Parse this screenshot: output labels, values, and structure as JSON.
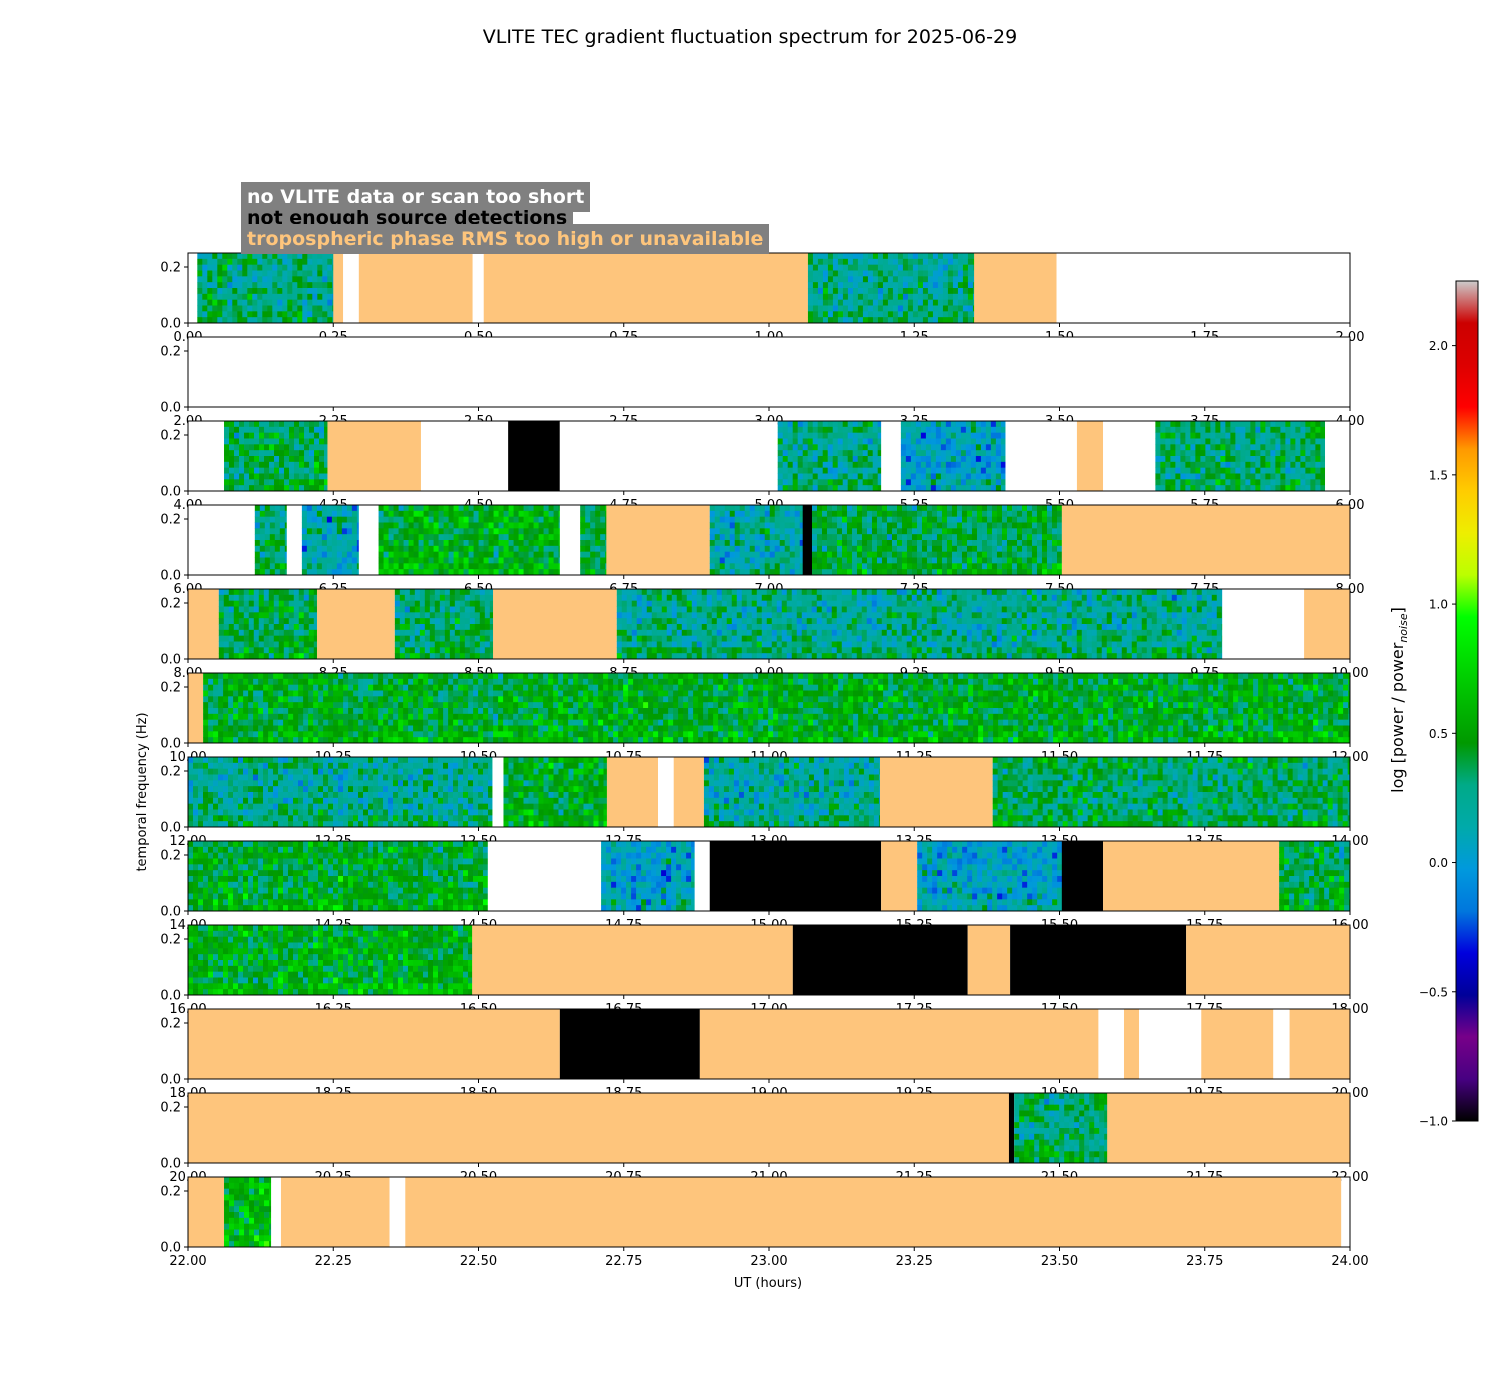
{
  "chart_data": {
    "type": "heatmap",
    "title": "VLITE TEC gradient fluctuation spectrum for 2025-06-29",
    "xlabel": "UT (hours)",
    "ylabel": "temporal frequency (Hz)",
    "colorbar": {
      "label_main": "log [power / power",
      "label_sub": "noise",
      "label_close": "]",
      "range": [
        -1.0,
        2.25
      ],
      "ticks": [
        "−1.0",
        "−0.5",
        "0.0",
        "0.5",
        "1.0",
        "1.5",
        "2.0"
      ],
      "tick_values": [
        -1.0,
        -0.5,
        0.0,
        0.5,
        1.0,
        1.5,
        2.0
      ],
      "colormap": "nipy_spectral"
    },
    "legend": [
      {
        "label": "no VLITE data or scan too short",
        "color": "#ffffff"
      },
      {
        "label": "not enough source detections",
        "color": "#000000"
      },
      {
        "label": "tropospheric phase RMS too high or unavailable",
        "color": "#fec57c"
      }
    ],
    "category_colors": {
      "data": "spectrum",
      "nodata": "#ffffff",
      "black": "#000000",
      "tropo": "#fec57c"
    },
    "y_ticks": [
      "0.0",
      "0.2"
    ],
    "y_tick_values": [
      0.0,
      0.2
    ],
    "ylim": [
      0.0,
      0.25
    ],
    "panels": [
      {
        "start": 0,
        "xticks": [
          "0.00",
          "0.25",
          "0.50",
          "0.75",
          "1.00",
          "1.25",
          "1.50",
          "1.75",
          "2.00"
        ],
        "segments": [
          [
            0.0,
            0.016,
            "nodata"
          ],
          [
            0.016,
            0.25,
            "data"
          ],
          [
            0.25,
            0.267,
            "tropo"
          ],
          [
            0.267,
            0.294,
            "nodata"
          ],
          [
            0.294,
            0.49,
            "tropo"
          ],
          [
            0.49,
            0.509,
            "nodata"
          ],
          [
            0.509,
            1.067,
            "tropo"
          ],
          [
            1.067,
            1.353,
            "data"
          ],
          [
            1.353,
            1.495,
            "tropo"
          ],
          [
            1.495,
            2.0,
            "nodata"
          ]
        ]
      },
      {
        "start": 2,
        "xticks": [
          "2.00",
          "2.25",
          "2.50",
          "2.75",
          "3.00",
          "3.25",
          "3.50",
          "3.75",
          "4.00"
        ],
        "segments": [
          [
            2.0,
            4.0,
            "nodata"
          ]
        ]
      },
      {
        "start": 4,
        "xticks": [
          "4.00",
          "4.25",
          "4.50",
          "4.75",
          "5.00",
          "5.25",
          "5.50",
          "5.75",
          "6.00"
        ],
        "segments": [
          [
            4.0,
            4.062,
            "nodata"
          ],
          [
            4.062,
            4.24,
            "data"
          ],
          [
            4.24,
            4.401,
            "tropo"
          ],
          [
            4.401,
            4.551,
            "nodata"
          ],
          [
            4.551,
            4.64,
            "black"
          ],
          [
            4.64,
            5.015,
            "nodata"
          ],
          [
            5.015,
            5.193,
            "data"
          ],
          [
            5.193,
            5.227,
            "nodata"
          ],
          [
            5.227,
            5.407,
            "data"
          ],
          [
            5.407,
            5.53,
            "nodata"
          ],
          [
            5.53,
            5.575,
            "tropo"
          ],
          [
            5.575,
            5.665,
            "nodata"
          ],
          [
            5.665,
            5.957,
            "data"
          ],
          [
            5.957,
            6.0,
            "nodata"
          ]
        ]
      },
      {
        "start": 6,
        "xticks": [
          "6.00",
          "6.25",
          "6.50",
          "6.75",
          "7.00",
          "7.25",
          "7.50",
          "7.75",
          "8.00"
        ],
        "segments": [
          [
            6.0,
            6.115,
            "nodata"
          ],
          [
            6.115,
            6.17,
            "data"
          ],
          [
            6.17,
            6.196,
            "nodata"
          ],
          [
            6.196,
            6.294,
            "data"
          ],
          [
            6.294,
            6.328,
            "nodata"
          ],
          [
            6.328,
            6.64,
            "data"
          ],
          [
            6.64,
            6.675,
            "nodata"
          ],
          [
            6.675,
            6.72,
            "data"
          ],
          [
            6.72,
            6.898,
            "tropo"
          ],
          [
            6.898,
            7.058,
            "data"
          ],
          [
            7.058,
            7.074,
            "black"
          ],
          [
            7.074,
            7.504,
            "data"
          ],
          [
            7.504,
            8.0,
            "tropo"
          ]
        ]
      },
      {
        "start": 8,
        "xticks": [
          "8.00",
          "8.25",
          "8.50",
          "8.75",
          "9.00",
          "9.25",
          "9.50",
          "9.75",
          "10.00"
        ],
        "segments": [
          [
            8.0,
            8.053,
            "tropo"
          ],
          [
            8.053,
            8.222,
            "data"
          ],
          [
            8.222,
            8.356,
            "tropo"
          ],
          [
            8.356,
            8.525,
            "data"
          ],
          [
            8.525,
            8.738,
            "tropo"
          ],
          [
            8.738,
            9.78,
            "data"
          ],
          [
            9.78,
            9.921,
            "nodata"
          ],
          [
            9.921,
            10.0,
            "tropo"
          ]
        ]
      },
      {
        "start": 10,
        "xticks": [
          "10.00",
          "10.25",
          "10.50",
          "10.75",
          "11.00",
          "11.25",
          "11.50",
          "11.75",
          "12.00"
        ],
        "segments": [
          [
            10.0,
            10.026,
            "tropo"
          ],
          [
            10.026,
            12.0,
            "data"
          ]
        ]
      },
      {
        "start": 12,
        "xticks": [
          "12.00",
          "12.25",
          "12.50",
          "12.75",
          "13.00",
          "13.25",
          "13.50",
          "13.75",
          "14.00"
        ],
        "segments": [
          [
            12.0,
            12.524,
            "data"
          ],
          [
            12.524,
            12.543,
            "nodata"
          ],
          [
            12.543,
            12.721,
            "data"
          ],
          [
            12.721,
            12.809,
            "tropo"
          ],
          [
            12.809,
            12.836,
            "nodata"
          ],
          [
            12.836,
            12.888,
            "tropo"
          ],
          [
            12.888,
            13.191,
            "data"
          ],
          [
            13.191,
            13.385,
            "tropo"
          ],
          [
            13.385,
            14.0,
            "data"
          ]
        ]
      },
      {
        "start": 14,
        "xticks": [
          "14.00",
          "14.25",
          "14.50",
          "14.75",
          "15.00",
          "15.25",
          "15.50",
          "15.75",
          "16.00"
        ],
        "segments": [
          [
            14.0,
            14.516,
            "data"
          ],
          [
            14.516,
            14.711,
            "nodata"
          ],
          [
            14.711,
            14.872,
            "data"
          ],
          [
            14.872,
            14.898,
            "nodata"
          ],
          [
            14.898,
            15.193,
            "black"
          ],
          [
            15.193,
            15.255,
            "tropo"
          ],
          [
            15.255,
            15.504,
            "data"
          ],
          [
            15.504,
            15.575,
            "black"
          ],
          [
            15.575,
            15.878,
            "tropo"
          ],
          [
            15.878,
            16.0,
            "data"
          ]
        ]
      },
      {
        "start": 16,
        "xticks": [
          "16.00",
          "16.25",
          "16.50",
          "16.75",
          "17.00",
          "17.25",
          "17.50",
          "17.75",
          "18.00"
        ],
        "segments": [
          [
            16.0,
            16.489,
            "data"
          ],
          [
            16.489,
            17.041,
            "tropo"
          ],
          [
            17.041,
            17.342,
            "black"
          ],
          [
            17.342,
            17.415,
            "tropo"
          ],
          [
            17.415,
            17.718,
            "black"
          ],
          [
            17.718,
            18.0,
            "tropo"
          ]
        ]
      },
      {
        "start": 18,
        "xticks": [
          "18.00",
          "18.25",
          "18.50",
          "18.75",
          "19.00",
          "19.25",
          "19.50",
          "19.75",
          "20.00"
        ],
        "segments": [
          [
            18.0,
            18.64,
            "tropo"
          ],
          [
            18.64,
            18.881,
            "black"
          ],
          [
            18.881,
            19.567,
            "tropo"
          ],
          [
            19.567,
            19.611,
            "nodata"
          ],
          [
            19.611,
            19.637,
            "tropo"
          ],
          [
            19.637,
            19.744,
            "nodata"
          ],
          [
            19.744,
            19.868,
            "tropo"
          ],
          [
            19.868,
            19.896,
            "nodata"
          ],
          [
            19.896,
            20.0,
            "tropo"
          ]
        ]
      },
      {
        "start": 20,
        "xticks": [
          "20.00",
          "20.25",
          "20.50",
          "20.75",
          "21.00",
          "21.25",
          "21.50",
          "21.75",
          "22.00"
        ],
        "segments": [
          [
            20.0,
            21.413,
            "tropo"
          ],
          [
            21.413,
            21.422,
            "black"
          ],
          [
            21.422,
            21.582,
            "data"
          ],
          [
            21.582,
            22.0,
            "tropo"
          ]
        ]
      },
      {
        "start": 22,
        "xticks": [
          "22.00",
          "22.25",
          "22.50",
          "22.75",
          "23.00",
          "23.25",
          "23.50",
          "23.75",
          "24.00"
        ],
        "segments": [
          [
            22.0,
            22.062,
            "tropo"
          ],
          [
            22.062,
            22.143,
            "data"
          ],
          [
            22.143,
            22.16,
            "nodata"
          ],
          [
            22.16,
            22.347,
            "tropo"
          ],
          [
            22.347,
            22.374,
            "nodata"
          ],
          [
            22.374,
            23.985,
            "tropo"
          ],
          [
            23.985,
            24.0,
            "nodata"
          ]
        ]
      }
    ]
  }
}
